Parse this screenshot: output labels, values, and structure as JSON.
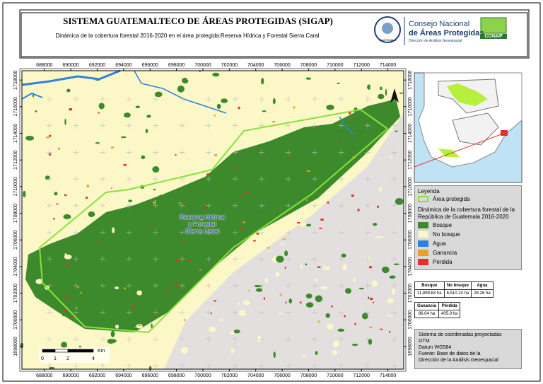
{
  "header": {
    "title": "SISTEMA GUATEMALTECO DE ÁREAS PROTEGIDAS  (SIGAP)",
    "subtitle": "Dinámica de la cobertura forestal 2016-2020 en el área protegida:Reserva Hídrica y Forestal Sierra Caral",
    "logo": {
      "seal": "GUATEMALA",
      "line1": "Consejo Nacional",
      "line2": "de Áreas Protegidas",
      "line3": "Dirección de Análisis Geoespacial",
      "acronym": "CONAP"
    }
  },
  "map": {
    "label_lines": [
      "Reserva Hídrica",
      "y Forestal",
      "Sierra Caral"
    ],
    "xlim": [
      686300,
      715200
    ],
    "ylim": [
      1696300,
      1718700
    ],
    "xticks": [
      688000,
      690000,
      692000,
      694000,
      696000,
      698000,
      700000,
      702000,
      704000,
      706000,
      708000,
      710000,
      712000,
      714000
    ],
    "yticks": [
      1698000,
      1700000,
      1702000,
      1704000,
      1706000,
      1708000,
      1710000,
      1712000,
      1714000,
      1716000,
      1718000
    ],
    "scale_bar": {
      "labels": [
        "0",
        "1",
        "2",
        "4"
      ],
      "unit": "Km"
    }
  },
  "legend": {
    "title": "Leyenda",
    "area": "Área protegida",
    "area_color": "#86e23a",
    "subtitle": "Dinámica de la cobertura forestal de la República de Guatemala 2016-2020",
    "items": [
      {
        "label": "Bosque",
        "color": "#3c8a2b"
      },
      {
        "label": "No bosque",
        "color": "#fbf7c6"
      },
      {
        "label": "Agua",
        "color": "#2f80e2"
      },
      {
        "label": "Ganancia",
        "color": "#e9a126"
      },
      {
        "label": "Pérdida",
        "color": "#e0322c"
      }
    ]
  },
  "tables": [
    {
      "headers": [
        "Bosque",
        "No bosque",
        "Agua"
      ],
      "rows": [
        [
          "11,898.63 ha",
          "6,510.24 ha",
          "28.26 ha"
        ]
      ]
    },
    {
      "headers": [
        "Ganancia",
        "Pérdida"
      ],
      "rows": [
        [
          "86.04 ha",
          "405.9 ha"
        ]
      ]
    }
  ],
  "footer": {
    "lines": [
      "Sistema de coordenadas proyectadas",
      "GTM",
      "Datum WG584",
      "Fuente: Base de datos de la",
      "Dirección de la Análisis Geoespacial"
    ]
  }
}
